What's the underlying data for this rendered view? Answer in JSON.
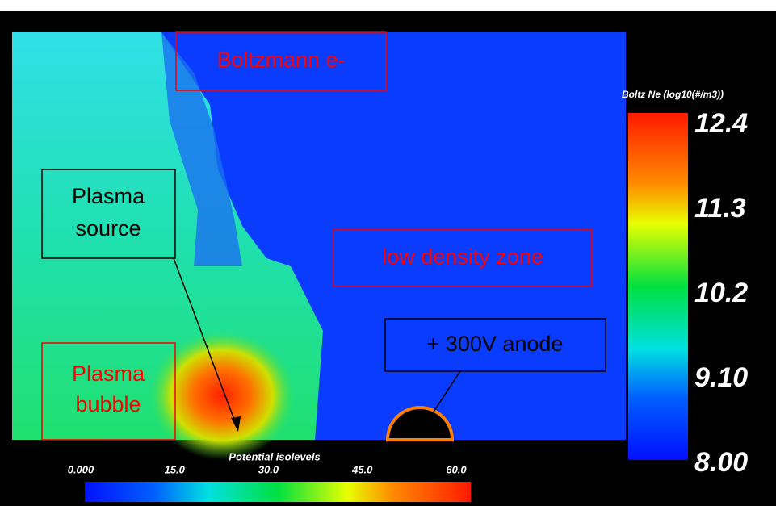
{
  "annotations": {
    "boltzmann": {
      "lines": [
        "Boltzmann e-"
      ]
    },
    "plasma_source": {
      "lines": [
        "Plasma",
        "source"
      ]
    },
    "low_density": {
      "lines": [
        "low density zone"
      ]
    },
    "anode": {
      "lines": [
        "+ 300V anode"
      ]
    },
    "plasma_bubble": {
      "lines": [
        "Plasma",
        "bubble"
      ]
    }
  },
  "density_legend": {
    "title": "Boltz Ne (log10(#/m3))",
    "labels": [
      "12.4",
      "11.3",
      "10.2",
      "9.10",
      "8.00"
    ]
  },
  "potential_legend": {
    "title": "Potential isolevels",
    "labels": [
      "0.000",
      "15.0",
      "30.0",
      "45.0",
      "60.0"
    ]
  }
}
